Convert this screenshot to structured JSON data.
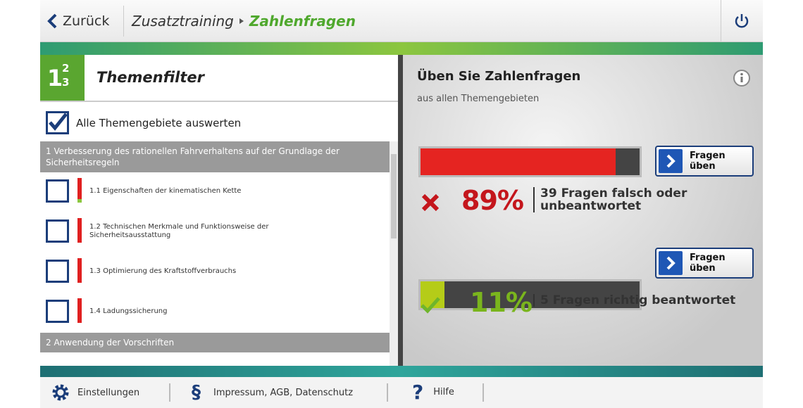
{
  "header": {
    "back": "Zurück",
    "breadcrumb": [
      "Zusatztraining",
      "Zahlenfragen"
    ]
  },
  "filter": {
    "icon": {
      "base": "1",
      "sup": "2",
      "sub": "3"
    },
    "title": "Themenfilter",
    "select_all": "Alle Themengebiete auswerten",
    "sections": [
      {
        "title": "1 Verbesserung des rationellen Fahrverhaltens auf der Grundlage der Sicherheitsregeln",
        "items": [
          "1.1 Eigenschaften der kinematischen Kette",
          "1.2 Technischen Merkmale und Funktionsweise der Sicherheitsausstattung",
          "1.3 Optimierung des Kraftstoffverbrauchs",
          "1.4 Ladungssicherung"
        ]
      },
      {
        "title": "2 Anwendung der Vorschriften"
      }
    ]
  },
  "practice": {
    "title": "Üben Sie Zahlenfragen",
    "subtitle": "aus allen Themengebieten",
    "results": [
      {
        "percent": 89,
        "percent_label": "89%",
        "text": "39 Fragen falsch oder unbeantwortet",
        "button": "Fragen üben"
      },
      {
        "percent": 11,
        "percent_label": "11%",
        "text": "5 Fragen richtig beantwortet",
        "button": "Fragen üben"
      }
    ]
  },
  "footer": {
    "items": [
      {
        "label": "Einstellungen"
      },
      {
        "icon": "§",
        "label": "Impressum, AGB, Datenschutz"
      },
      {
        "icon": "?",
        "label": "Hilfe"
      }
    ]
  }
}
